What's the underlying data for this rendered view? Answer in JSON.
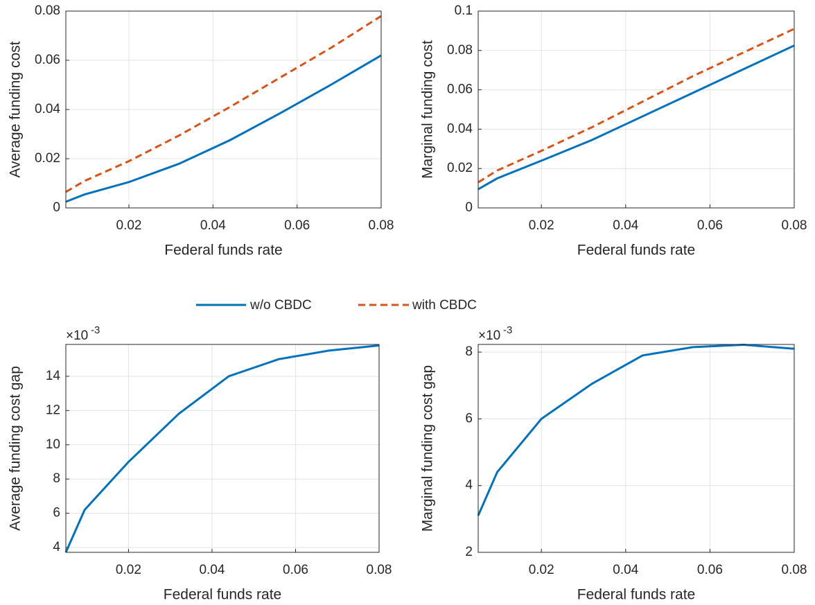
{
  "chart_data": [
    {
      "type": "line",
      "xlabel": "Federal funds rate",
      "ylabel": "Average funding cost",
      "x": [
        0.005,
        0.0095,
        0.02,
        0.032,
        0.044,
        0.056,
        0.068,
        0.08
      ],
      "series": [
        {
          "name": "w/o CBDC",
          "color": "#0072BD",
          "dash": false,
          "values": [
            0.0025,
            0.0055,
            0.0105,
            0.018,
            0.0275,
            0.0385,
            0.05,
            0.062
          ]
        },
        {
          "name": "with CBDC",
          "color": "#D95319",
          "dash": true,
          "values": [
            0.0065,
            0.011,
            0.019,
            0.0295,
            0.041,
            0.053,
            0.065,
            0.078
          ]
        }
      ],
      "xlim": [
        0.005,
        0.08
      ],
      "xticks": [
        0.02,
        0.04,
        0.06,
        0.08
      ],
      "ylim": [
        0,
        0.08
      ],
      "yticks": [
        0,
        0.02,
        0.04,
        0.06,
        0.08
      ],
      "grid": true
    },
    {
      "type": "line",
      "xlabel": "Federal funds rate",
      "ylabel": "Marginal funding cost",
      "x": [
        0.005,
        0.0095,
        0.02,
        0.032,
        0.044,
        0.056,
        0.068,
        0.08
      ],
      "series": [
        {
          "color": "#0072BD",
          "dash": false,
          "values": [
            0.0095,
            0.015,
            0.024,
            0.0345,
            0.0465,
            0.0585,
            0.0705,
            0.0825
          ]
        },
        {
          "color": "#D95319",
          "dash": true,
          "values": [
            0.013,
            0.019,
            0.029,
            0.041,
            0.054,
            0.067,
            0.079,
            0.091
          ]
        }
      ],
      "xlim": [
        0.005,
        0.08
      ],
      "xticks": [
        0.02,
        0.04,
        0.06,
        0.08
      ],
      "ylim": [
        0,
        0.1
      ],
      "yticks": [
        0,
        0.02,
        0.04,
        0.06,
        0.08,
        0.1
      ],
      "grid": true
    },
    {
      "type": "line",
      "xlabel": "Federal funds rate",
      "ylabel": "Average funding cost gap",
      "y_scale_base": "×10",
      "y_scale_exponent": "-3",
      "x": [
        0.005,
        0.0095,
        0.02,
        0.032,
        0.044,
        0.056,
        0.068,
        0.08
      ],
      "series": [
        {
          "color": "#0072BD",
          "dash": false,
          "values": [
            3.72,
            6.2,
            9.0,
            11.8,
            14.0,
            15.0,
            15.5,
            15.8
          ]
        }
      ],
      "xlim": [
        0.005,
        0.08
      ],
      "xticks": [
        0.02,
        0.04,
        0.06,
        0.08
      ],
      "ylim": [
        3.72,
        15.86
      ],
      "yticks": [
        4,
        6,
        8,
        10,
        12,
        14
      ],
      "grid": true
    },
    {
      "type": "line",
      "xlabel": "Federal funds rate",
      "ylabel": "Marginal funding cost gap",
      "y_scale_base": "×10",
      "y_scale_exponent": "-3",
      "x": [
        0.005,
        0.0095,
        0.02,
        0.032,
        0.044,
        0.056,
        0.068,
        0.08
      ],
      "series": [
        {
          "color": "#0072BD",
          "dash": false,
          "values": [
            3.1,
            4.4,
            6.0,
            7.05,
            7.9,
            8.15,
            8.22,
            8.1
          ]
        }
      ],
      "xlim": [
        0.005,
        0.08
      ],
      "xticks": [
        0.02,
        0.04,
        0.06,
        0.08
      ],
      "ylim": [
        2,
        8.23
      ],
      "yticks": [
        2,
        4,
        6,
        8
      ],
      "grid": true
    }
  ]
}
